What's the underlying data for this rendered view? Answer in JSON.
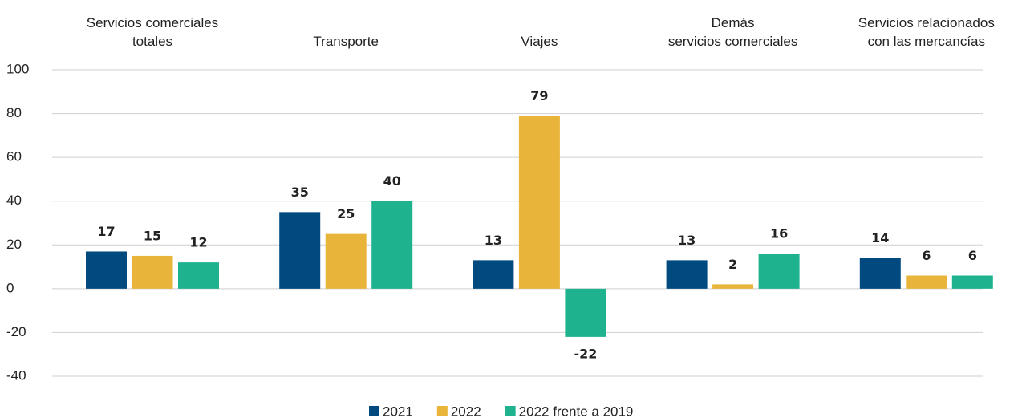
{
  "chart_data": {
    "type": "bar",
    "categories": [
      "Servicios comerciales\ntotales",
      "Transporte",
      "Viajes",
      "Demás\nservicios comerciales",
      "Servicios relacionados\ncon las mercancías"
    ],
    "series": [
      {
        "name": "2021",
        "color": "#004a80",
        "values": [
          17,
          35,
          13,
          13,
          14
        ]
      },
      {
        "name": "2022",
        "color": "#e8b53a",
        "values": [
          15,
          25,
          79,
          2,
          6
        ]
      },
      {
        "name": "2022 frente a 2019",
        "color": "#1fb28f",
        "values": [
          12,
          40,
          -22,
          16,
          6
        ]
      }
    ],
    "ylim": [
      -40,
      100
    ],
    "yticks": [
      -40,
      -20,
      0,
      20,
      40,
      60,
      80,
      100
    ],
    "grid": true
  }
}
